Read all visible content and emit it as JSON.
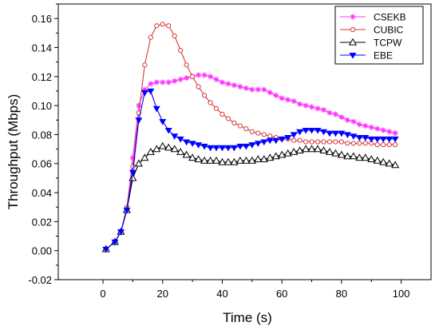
{
  "chart_data": {
    "type": "line",
    "title": "",
    "xlabel": "Time (s)",
    "ylabel": "Throughput (Mbps)",
    "xlim": [
      -15,
      110
    ],
    "ylim": [
      -0.02,
      0.17
    ],
    "xticks": [
      0,
      20,
      40,
      60,
      80,
      100
    ],
    "xtick_labels": [
      "0",
      "20",
      "40",
      "60",
      "80",
      "100"
    ],
    "yticks": [
      -0.02,
      0.0,
      0.02,
      0.04,
      0.06,
      0.08,
      0.1,
      0.12,
      0.14,
      0.16
    ],
    "ytick_labels": [
      "-0.02",
      "0.00",
      "0.02",
      "0.04",
      "0.06",
      "0.08",
      "0.10",
      "0.12",
      "0.14",
      "0.16"
    ],
    "grid": false,
    "legend_position": "top-right",
    "series": [
      {
        "name": "CSEKB",
        "color": "#ff33ff",
        "marker": "asterisk",
        "x": [
          1,
          4,
          6,
          8,
          10,
          12,
          14,
          16,
          18,
          20,
          22,
          24,
          26,
          28,
          30,
          32,
          34,
          36,
          38,
          40,
          42,
          44,
          46,
          48,
          50,
          52,
          54,
          56,
          58,
          60,
          62,
          64,
          66,
          68,
          70,
          72,
          74,
          76,
          78,
          80,
          82,
          84,
          86,
          88,
          90,
          92,
          94,
          96,
          98
        ],
        "y": [
          0.001,
          0.006,
          0.013,
          0.029,
          0.064,
          0.1,
          0.111,
          0.115,
          0.116,
          0.116,
          0.116,
          0.117,
          0.118,
          0.119,
          0.12,
          0.121,
          0.121,
          0.12,
          0.118,
          0.116,
          0.115,
          0.114,
          0.113,
          0.112,
          0.111,
          0.111,
          0.111,
          0.109,
          0.107,
          0.105,
          0.104,
          0.103,
          0.101,
          0.1,
          0.099,
          0.098,
          0.097,
          0.095,
          0.094,
          0.092,
          0.09,
          0.089,
          0.087,
          0.086,
          0.085,
          0.084,
          0.083,
          0.082,
          0.081
        ]
      },
      {
        "name": "CUBIC",
        "color": "#d43a3a",
        "marker": "circle",
        "x": [
          1,
          4,
          6,
          8,
          10,
          12,
          14,
          16,
          18,
          20,
          22,
          24,
          26,
          28,
          30,
          32,
          34,
          36,
          38,
          40,
          42,
          44,
          46,
          48,
          50,
          52,
          54,
          56,
          58,
          60,
          62,
          64,
          66,
          68,
          70,
          72,
          74,
          76,
          78,
          80,
          82,
          84,
          86,
          88,
          90,
          92,
          94,
          96,
          98
        ],
        "y": [
          0.001,
          0.006,
          0.013,
          0.03,
          0.058,
          0.095,
          0.128,
          0.147,
          0.155,
          0.156,
          0.155,
          0.148,
          0.138,
          0.128,
          0.12,
          0.113,
          0.107,
          0.102,
          0.098,
          0.094,
          0.091,
          0.088,
          0.086,
          0.084,
          0.082,
          0.081,
          0.08,
          0.079,
          0.078,
          0.077,
          0.077,
          0.076,
          0.076,
          0.075,
          0.075,
          0.075,
          0.075,
          0.075,
          0.075,
          0.075,
          0.074,
          0.074,
          0.074,
          0.074,
          0.074,
          0.073,
          0.073,
          0.073,
          0.073
        ]
      },
      {
        "name": "TCPW",
        "color": "#000000",
        "marker": "triangle-open",
        "x": [
          1,
          4,
          6,
          8,
          10,
          12,
          14,
          16,
          18,
          20,
          22,
          24,
          26,
          28,
          30,
          32,
          34,
          36,
          38,
          40,
          42,
          44,
          46,
          48,
          50,
          52,
          54,
          56,
          58,
          60,
          62,
          64,
          66,
          68,
          70,
          72,
          74,
          76,
          78,
          80,
          82,
          84,
          86,
          88,
          90,
          92,
          94,
          96,
          98
        ],
        "y": [
          0.001,
          0.006,
          0.013,
          0.028,
          0.05,
          0.06,
          0.064,
          0.068,
          0.07,
          0.072,
          0.071,
          0.07,
          0.068,
          0.066,
          0.064,
          0.063,
          0.062,
          0.062,
          0.062,
          0.061,
          0.061,
          0.061,
          0.062,
          0.062,
          0.062,
          0.063,
          0.063,
          0.064,
          0.065,
          0.066,
          0.067,
          0.068,
          0.069,
          0.07,
          0.07,
          0.07,
          0.069,
          0.068,
          0.067,
          0.066,
          0.065,
          0.065,
          0.064,
          0.064,
          0.063,
          0.062,
          0.061,
          0.06,
          0.059
        ]
      },
      {
        "name": "EBE",
        "color": "#0000ff",
        "marker": "triangle-down",
        "x": [
          1,
          4,
          6,
          8,
          10,
          12,
          14,
          16,
          18,
          20,
          22,
          24,
          26,
          28,
          30,
          32,
          34,
          36,
          38,
          40,
          42,
          44,
          46,
          48,
          50,
          52,
          54,
          56,
          58,
          60,
          62,
          64,
          66,
          68,
          70,
          72,
          74,
          76,
          78,
          80,
          82,
          84,
          86,
          88,
          90,
          92,
          94,
          96,
          98
        ],
        "y": [
          0.001,
          0.006,
          0.013,
          0.028,
          0.054,
          0.09,
          0.109,
          0.11,
          0.098,
          0.089,
          0.083,
          0.079,
          0.077,
          0.075,
          0.074,
          0.073,
          0.072,
          0.071,
          0.071,
          0.071,
          0.071,
          0.071,
          0.072,
          0.072,
          0.073,
          0.074,
          0.075,
          0.076,
          0.076,
          0.077,
          0.078,
          0.08,
          0.082,
          0.083,
          0.083,
          0.083,
          0.082,
          0.081,
          0.081,
          0.081,
          0.08,
          0.079,
          0.078,
          0.078,
          0.077,
          0.077,
          0.077,
          0.077,
          0.077
        ]
      }
    ]
  }
}
